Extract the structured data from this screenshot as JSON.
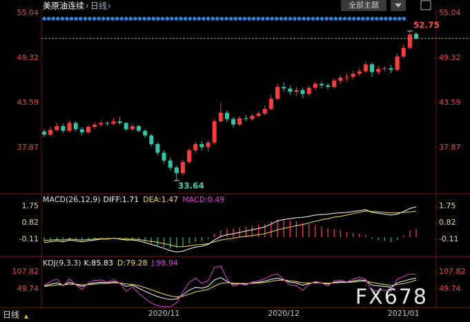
{
  "chart_data": [
    {
      "type": "candlestick",
      "title": "美原油连续",
      "period": "日线",
      "theme_button": "全部主题",
      "watermark": "FX678",
      "bottom_label": "日线",
      "up_color": "#ff3b3b",
      "down_color": "#2ec7a6",
      "last_line_color": "#e8a020",
      "categories": [
        null,
        null,
        null,
        null,
        null,
        null,
        null,
        null,
        null,
        null,
        null,
        null,
        null,
        null,
        null,
        null,
        null,
        null,
        null,
        "2020/11",
        null,
        null,
        null,
        null,
        null,
        null,
        null,
        null,
        null,
        null,
        null,
        null,
        null,
        null,
        null,
        null,
        null,
        null,
        "2020/12",
        null,
        null,
        null,
        null,
        null,
        null,
        null,
        null,
        null,
        null,
        null,
        null,
        null,
        null,
        null,
        null,
        null,
        null,
        "2021/01",
        null,
        null
      ],
      "candles": [
        [
          39.9,
          40.2,
          39.2,
          39.5
        ],
        [
          39.5,
          40.5,
          39.3,
          40.1
        ],
        [
          40.1,
          41.0,
          39.9,
          40.6
        ],
        [
          40.6,
          40.9,
          39.7,
          40.0
        ],
        [
          40.0,
          41.3,
          39.8,
          41.0
        ],
        [
          41.0,
          41.2,
          39.9,
          40.2
        ],
        [
          40.2,
          40.5,
          39.4,
          39.8
        ],
        [
          39.8,
          40.8,
          39.6,
          40.5
        ],
        [
          40.5,
          41.1,
          40.2,
          40.8
        ],
        [
          40.8,
          41.3,
          40.5,
          41.0
        ],
        [
          41.0,
          41.2,
          40.6,
          40.9
        ],
        [
          40.9,
          41.6,
          40.7,
          41.2
        ],
        [
          41.2,
          41.8,
          40.8,
          41.0
        ],
        [
          41.0,
          41.1,
          40.0,
          40.2
        ],
        [
          40.2,
          40.9,
          40.0,
          40.6
        ],
        [
          40.6,
          40.8,
          39.8,
          40.0
        ],
        [
          40.0,
          40.2,
          39.1,
          39.4
        ],
        [
          39.4,
          39.6,
          38.0,
          38.3
        ],
        [
          38.3,
          38.5,
          36.9,
          37.2
        ],
        [
          37.2,
          37.5,
          35.8,
          36.2
        ],
        [
          36.2,
          36.6,
          34.9,
          35.3
        ],
        [
          35.3,
          35.6,
          33.64,
          34.6
        ],
        [
          34.6,
          36.3,
          34.3,
          36.0
        ],
        [
          36.0,
          37.8,
          35.8,
          37.5
        ],
        [
          37.5,
          38.6,
          37.2,
          38.3
        ],
        [
          38.3,
          38.7,
          37.5,
          37.9
        ],
        [
          37.9,
          38.8,
          37.4,
          38.5
        ],
        [
          38.5,
          41.5,
          38.3,
          41.2
        ],
        [
          41.2,
          43.6,
          41.0,
          42.3
        ],
        [
          42.3,
          42.6,
          41.1,
          41.5
        ],
        [
          41.5,
          41.8,
          40.4,
          40.8
        ],
        [
          40.8,
          41.9,
          40.6,
          41.6
        ],
        [
          41.6,
          42.0,
          41.2,
          41.5
        ],
        [
          41.5,
          42.2,
          41.3,
          41.9
        ],
        [
          41.9,
          42.5,
          41.7,
          42.2
        ],
        [
          42.2,
          43.2,
          42.0,
          42.8
        ],
        [
          42.8,
          44.6,
          42.6,
          44.1
        ],
        [
          44.1,
          46.0,
          43.9,
          45.6
        ],
        [
          45.6,
          46.2,
          45.0,
          45.4
        ],
        [
          45.4,
          45.8,
          44.6,
          45.0
        ],
        [
          45.0,
          45.6,
          44.5,
          45.2
        ],
        [
          45.2,
          45.5,
          44.2,
          44.7
        ],
        [
          44.7,
          45.8,
          44.4,
          45.5
        ],
        [
          45.5,
          46.3,
          45.2,
          46.0
        ],
        [
          46.0,
          46.3,
          45.4,
          45.8
        ],
        [
          45.8,
          46.1,
          45.3,
          45.6
        ],
        [
          45.6,
          46.7,
          45.4,
          46.4
        ],
        [
          46.4,
          47.1,
          46.0,
          46.8
        ],
        [
          46.8,
          47.3,
          46.4,
          46.9
        ],
        [
          46.9,
          47.7,
          46.6,
          47.3
        ],
        [
          47.3,
          48.0,
          47.0,
          47.6
        ],
        [
          47.6,
          48.9,
          47.4,
          48.5
        ],
        [
          48.5,
          48.7,
          46.9,
          47.5
        ],
        [
          47.5,
          48.3,
          47.2,
          47.9
        ],
        [
          47.9,
          48.3,
          47.6,
          48.0
        ],
        [
          48.0,
          48.4,
          47.4,
          47.8
        ],
        [
          47.8,
          49.9,
          47.6,
          49.5
        ],
        [
          49.5,
          51.0,
          49.3,
          50.6
        ],
        [
          50.6,
          52.75,
          50.4,
          52.3
        ],
        [
          52.4,
          52.6,
          51.6,
          51.8
        ]
      ],
      "ylim": [
        32.04,
        55.57
      ],
      "yticks": [
        37.87,
        43.59,
        49.32,
        55.04
      ],
      "tick_color": "#f04646"
    },
    {
      "type": "macd",
      "title": "MACD(26,12,9)",
      "ylim": [
        -1.0,
        2.37
      ],
      "yticks": [
        -0.11,
        0.82,
        1.75
      ],
      "tick_color": "#e8d890",
      "histogram": {
        "name": "MACD:0.49",
        "color": "#e040e0",
        "up_color": "#ff3b3b",
        "down_color": "#22c55e",
        "values": [
          -0.25,
          -0.2,
          -0.15,
          -0.2,
          -0.1,
          -0.15,
          -0.2,
          -0.15,
          -0.1,
          -0.05,
          -0.05,
          0,
          -0.05,
          -0.1,
          -0.1,
          -0.15,
          -0.25,
          -0.35,
          -0.45,
          -0.55,
          -0.62,
          -0.6,
          -0.5,
          -0.35,
          -0.25,
          -0.2,
          -0.1,
          0.2,
          0.4,
          0.5,
          0.5,
          0.55,
          0.6,
          0.65,
          0.7,
          0.75,
          0.9,
          1.0,
          1.0,
          0.95,
          0.9,
          0.8,
          0.75,
          0.7,
          0.6,
          0.5,
          0.45,
          0.4,
          0.3,
          0.25,
          0.2,
          0.15,
          -0.1,
          -0.15,
          -0.2,
          -0.25,
          -0.15,
          0.1,
          0.4,
          0.49
        ]
      },
      "series": [
        {
          "name": "DIFF:1.71",
          "color": "#ffffff",
          "values": [
            -0.3,
            -0.25,
            -0.2,
            -0.25,
            -0.15,
            -0.2,
            -0.25,
            -0.2,
            -0.15,
            -0.1,
            -0.1,
            -0.05,
            -0.1,
            -0.15,
            -0.15,
            -0.2,
            -0.3,
            -0.4,
            -0.5,
            -0.62,
            -0.75,
            -0.82,
            -0.78,
            -0.65,
            -0.55,
            -0.5,
            -0.4,
            -0.15,
            0.05,
            0.15,
            0.2,
            0.28,
            0.35,
            0.42,
            0.5,
            0.58,
            0.75,
            0.92,
            1.0,
            1.05,
            1.1,
            1.12,
            1.18,
            1.25,
            1.28,
            1.3,
            1.35,
            1.38,
            1.4,
            1.45,
            1.5,
            1.55,
            1.4,
            1.35,
            1.3,
            1.25,
            1.3,
            1.45,
            1.62,
            1.71
          ]
        },
        {
          "name": "DEA:1.47",
          "color": "#f5e050",
          "values": [
            -0.18,
            -0.15,
            -0.13,
            -0.15,
            -0.1,
            -0.13,
            -0.15,
            -0.13,
            -0.1,
            -0.08,
            -0.08,
            -0.05,
            -0.08,
            -0.1,
            -0.1,
            -0.13,
            -0.18,
            -0.23,
            -0.28,
            -0.35,
            -0.44,
            -0.52,
            -0.53,
            -0.48,
            -0.43,
            -0.4,
            -0.35,
            -0.25,
            -0.15,
            -0.1,
            -0.05,
            0.01,
            0.05,
            0.1,
            0.15,
            0.21,
            0.3,
            0.42,
            0.5,
            0.58,
            0.65,
            0.72,
            0.81,
            0.9,
            0.98,
            1.05,
            1.13,
            1.18,
            1.25,
            1.33,
            1.4,
            1.48,
            1.45,
            1.43,
            1.4,
            1.38,
            1.38,
            1.4,
            1.42,
            1.47
          ]
        }
      ]
    },
    {
      "type": "kdj",
      "title": "KDJ(9,3,3)",
      "ylim": [
        -10.7,
        152
      ],
      "yticks": [
        49.74,
        107.82
      ],
      "tick_color": "#f04646",
      "series": [
        {
          "name": "K:85.83",
          "color": "#ffffff",
          "values": [
            60,
            65,
            70,
            62,
            72,
            65,
            58,
            66,
            70,
            72,
            70,
            74,
            70,
            58,
            62,
            52,
            42,
            32,
            24,
            18,
            14,
            16,
            30,
            45,
            55,
            52,
            58,
            80,
            88,
            75,
            65,
            68,
            66,
            70,
            72,
            76,
            82,
            86,
            80,
            72,
            70,
            62,
            68,
            72,
            70,
            66,
            72,
            74,
            72,
            76,
            80,
            78,
            62,
            60,
            58,
            55,
            70,
            76,
            82,
            85.83
          ]
        },
        {
          "name": "D:79.28",
          "color": "#f5e050",
          "values": [
            58,
            60.3,
            63.6,
            63,
            66,
            65.7,
            63.1,
            64.1,
            66,
            68,
            68.7,
            70.4,
            70.3,
            66.2,
            64.8,
            60.5,
            54.3,
            46.9,
            39.3,
            32.2,
            26.1,
            22.7,
            25.2,
            31.8,
            39.5,
            43.7,
            48.4,
            59,
            68.6,
            70.8,
            68.8,
            68.6,
            67.7,
            68.5,
            69.6,
            71.8,
            75.2,
            78.8,
            79.2,
            76.8,
            74.5,
            70.4,
            69.6,
            70.4,
            70.3,
            68.8,
            69.9,
            71.3,
            71.5,
            73,
            75.3,
            76.2,
            71.5,
            67.7,
            64.4,
            61.3,
            64.2,
            68.1,
            72.8,
            79.28
          ]
        },
        {
          "name": "J:98.94",
          "color": "#e040e0",
          "values": [
            64,
            74.4,
            82.8,
            60,
            84,
            63.6,
            47.8,
            69.8,
            78,
            80,
            72.6,
            81.2,
            69.4,
            41.6,
            56.4,
            35,
            17.4,
            2.2,
            -6.6,
            -10.4,
            -10.2,
            2.6,
            39.6,
            71.4,
            86,
            68.6,
            77.2,
            122,
            126.8,
            83.4,
            57.4,
            66.8,
            62.6,
            73,
            76.8,
            84.4,
            95.6,
            100.4,
            81.6,
            62.4,
            61,
            45.2,
            64.8,
            75.2,
            69.4,
            60.4,
            76.2,
            79.4,
            73,
            82,
            89.4,
            81.6,
            43,
            44.6,
            45.2,
            42.4,
            81.6,
            91.8,
            100.4,
            98.94
          ]
        }
      ]
    }
  ]
}
